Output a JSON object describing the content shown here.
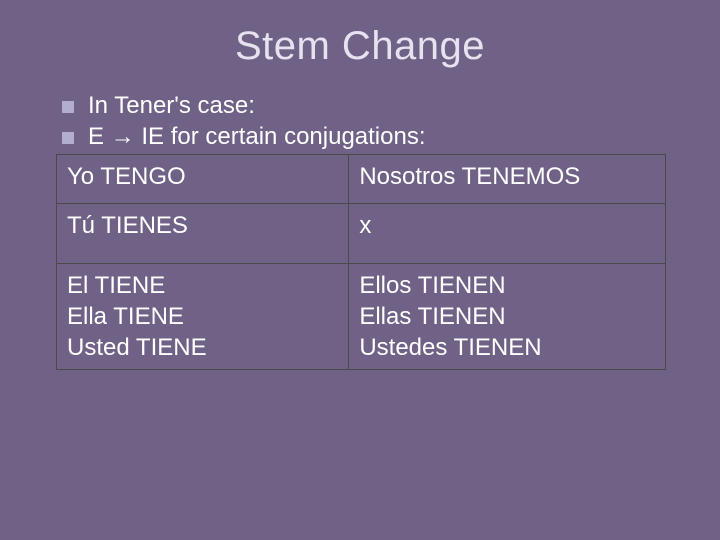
{
  "slide": {
    "title": "Stem Change",
    "background_color": "#706186",
    "title_color": "#e6e2ef",
    "text_color": "#ffffff",
    "bullet_marker_color": "#b3aed0",
    "title_fontsize": 40,
    "body_fontsize": 24,
    "bullets": [
      {
        "text": "In Tener's case:"
      },
      {
        "text": "E → IE for certain conjugations:"
      }
    ],
    "table": {
      "border_color": "#4a4a4a",
      "columns": [
        "left",
        "right"
      ],
      "rows": [
        {
          "left": [
            "Yo TENGO"
          ],
          "right": [
            "Nosotros TENEMOS"
          ]
        },
        {
          "left": [
            "Tú TIENES"
          ],
          "right": [
            "x"
          ]
        },
        {
          "left": [
            "El TIENE",
            "Ella TIENE",
            "Usted TIENE"
          ],
          "right": [
            "Ellos TIENEN",
            "Ellas TIENEN",
            "Ustedes TIENEN"
          ]
        }
      ]
    }
  }
}
